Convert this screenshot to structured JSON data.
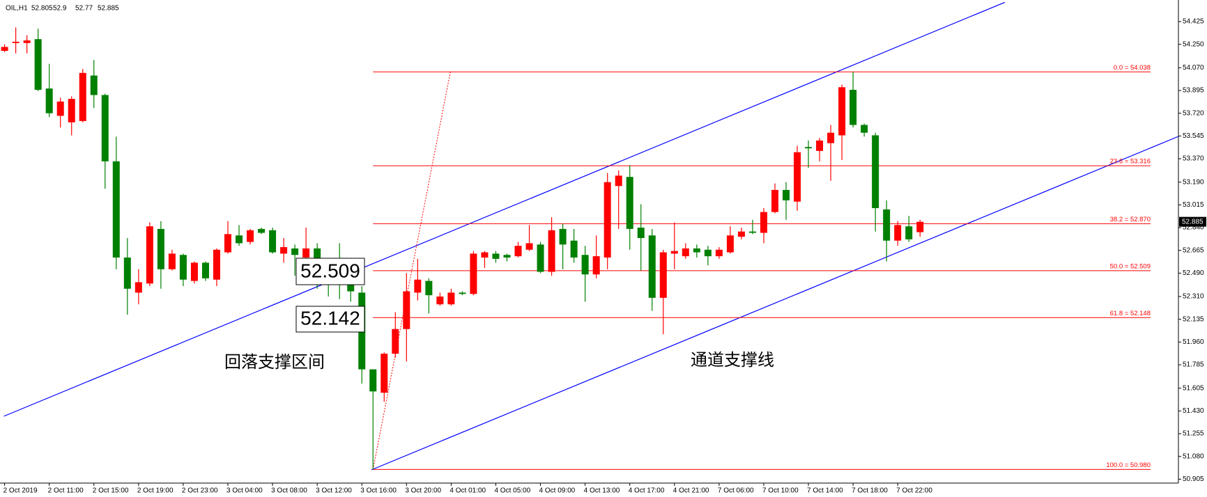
{
  "chart_data": {
    "type": "candlestick",
    "symbol": "OIL,H1",
    "categories": [
      "2 Oct 2019",
      null,
      null,
      null,
      "2 Oct 11:00",
      null,
      null,
      null,
      "2 Oct 15:00",
      null,
      null,
      null,
      "2 Oct 19:00",
      null,
      null,
      null,
      "2 Oct 23:00",
      null,
      null,
      null,
      "3 Oct 04:00",
      null,
      null,
      null,
      "3 Oct 08:00",
      null,
      null,
      null,
      "3 Oct 12:00",
      null,
      null,
      null,
      "3 Oct 16:00",
      null,
      null,
      null,
      "3 Oct 20:00",
      null,
      null,
      null,
      "4 Oct 01:00",
      null,
      null,
      null,
      "4 Oct 05:00",
      null,
      null,
      null,
      "4 Oct 09:00",
      null,
      null,
      null,
      "4 Oct 13:00",
      null,
      null,
      null,
      "4 Oct 17:00",
      null,
      null,
      null,
      "4 Oct 21:00",
      null,
      null,
      null,
      "7 Oct 06:00",
      null,
      null,
      null,
      "7 Oct 10:00",
      null,
      null,
      null,
      "7 Oct 14:00",
      null,
      null,
      null,
      "7 Oct 18:00",
      null,
      null,
      null,
      "7 Oct 22:00",
      null,
      null
    ],
    "open": [
      54.2,
      54.26,
      54.26,
      54.29,
      53.91,
      53.7,
      53.65,
      53.66,
      54.01,
      53.86,
      53.35,
      52.61,
      52.34,
      52.41,
      52.83,
      52.52,
      52.63,
      52.43,
      52.57,
      52.44,
      52.65,
      52.78,
      52.73,
      52.83,
      52.82,
      52.64,
      52.68,
      52.61,
      52.68,
      52.48,
      52.47,
      52.46,
      52.34,
      51.75,
      51.57,
      51.87,
      52.06,
      52.34,
      52.43,
      52.25,
      52.25,
      52.34,
      52.33,
      52.61,
      52.64,
      52.63,
      52.62,
      52.67,
      52.71,
      52.5,
      52.83,
      52.74,
      52.63,
      52.48,
      52.61,
      53.16,
      53.23,
      52.84,
      52.78,
      52.3,
      52.64,
      52.62,
      52.68,
      52.67,
      52.62,
      52.65,
      52.77,
      52.81,
      52.8,
      52.96,
      53.13,
      53.04,
      53.46,
      53.43,
      53.49,
      53.55,
      53.9,
      53.63,
      53.55,
      52.98,
      52.74,
      52.85,
      52.805
    ],
    "high": [
      54.25,
      54.38,
      54.32,
      54.37,
      54.1,
      53.84,
      53.85,
      54.06,
      54.13,
      53.87,
      53.54,
      52.76,
      52.52,
      52.88,
      52.89,
      52.67,
      52.64,
      52.58,
      52.58,
      52.68,
      52.89,
      52.86,
      52.83,
      52.84,
      52.84,
      52.76,
      52.71,
      52.84,
      52.72,
      52.55,
      52.72,
      52.52,
      52.39,
      51.75,
      51.88,
      52.19,
      52.49,
      52.6,
      52.45,
      52.34,
      52.37,
      52.35,
      52.66,
      52.66,
      52.66,
      52.64,
      52.73,
      52.86,
      52.73,
      52.92,
      52.87,
      52.83,
      52.7,
      52.78,
      53.26,
      53.28,
      53.32,
      53.02,
      52.83,
      52.67,
      52.88,
      52.72,
      52.71,
      52.7,
      52.69,
      52.85,
      52.84,
      52.9,
      52.99,
      53.18,
      53.19,
      53.47,
      53.51,
      53.53,
      53.63,
      53.94,
      54.04,
      53.64,
      53.57,
      53.05,
      52.89,
      52.93,
      52.9
    ],
    "low": [
      54.19,
      54.18,
      54.18,
      53.89,
      53.69,
      53.61,
      53.55,
      53.65,
      53.76,
      53.14,
      52.52,
      52.17,
      52.25,
      52.39,
      52.37,
      52.51,
      52.39,
      52.41,
      52.43,
      52.39,
      52.64,
      52.7,
      52.71,
      52.79,
      52.64,
      52.57,
      52.47,
      52.47,
      52.37,
      52.31,
      52.29,
      52.27,
      51.64,
      50.98,
      51.5,
      51.84,
      51.81,
      52.28,
      52.18,
      52.24,
      52.24,
      52.32,
      52.32,
      52.53,
      52.57,
      52.58,
      52.61,
      52.66,
      52.49,
      52.47,
      52.52,
      52.57,
      52.27,
      52.45,
      52.52,
      52.83,
      52.67,
      52.51,
      52.2,
      52.02,
      52.52,
      52.6,
      52.61,
      52.55,
      52.6,
      52.64,
      52.75,
      52.79,
      52.72,
      52.95,
      52.9,
      52.97,
      53.3,
      53.35,
      53.2,
      53.36,
      53.61,
      53.54,
      52.81,
      52.58,
      52.7,
      52.73,
      52.77
    ],
    "close": [
      54.23,
      54.27,
      54.28,
      53.9,
      53.72,
      53.81,
      53.83,
      54.03,
      53.86,
      53.35,
      52.61,
      52.37,
      52.42,
      52.85,
      52.52,
      52.64,
      52.44,
      52.57,
      52.45,
      52.67,
      52.79,
      52.72,
      52.82,
      52.8,
      52.65,
      52.69,
      52.63,
      52.68,
      52.46,
      52.46,
      52.45,
      52.35,
      51.75,
      51.58,
      51.87,
      52.06,
      52.35,
      52.44,
      52.32,
      52.31,
      52.34,
      52.33,
      52.64,
      52.65,
      52.6,
      52.61,
      52.7,
      52.72,
      52.5,
      52.82,
      52.71,
      52.61,
      52.48,
      52.62,
      53.19,
      53.24,
      52.83,
      52.76,
      52.3,
      52.65,
      52.66,
      52.68,
      52.65,
      52.62,
      52.67,
      52.78,
      52.81,
      52.8,
      52.96,
      53.13,
      53.05,
      53.42,
      53.45,
      53.51,
      53.57,
      53.92,
      53.63,
      53.57,
      52.99,
      52.74,
      52.86,
      52.75,
      52.885
    ],
    "up_color": "#ff0000",
    "down_color": "#008000",
    "ylim": [
      50.875,
      54.591
    ],
    "yticks": [
      54.425,
      {
        "value": 54.25,
        "label": "54.250"
      },
      {
        "value": 54.07,
        "label": "54.070"
      },
      53.895,
      {
        "value": 53.72,
        "label": "53.720"
      },
      53.545,
      {
        "value": 53.37,
        "label": "53.370"
      },
      {
        "value": 53.19,
        "label": "53.190"
      },
      53.015,
      {
        "value": 52.84,
        "label": "52.840"
      },
      52.665,
      {
        "value": 52.49,
        "label": "52.490"
      },
      {
        "value": 52.31,
        "label": "52.310"
      },
      52.135,
      {
        "value": 51.96,
        "label": "51.960"
      },
      51.785,
      51.605,
      {
        "value": 51.43,
        "label": "51.430"
      },
      51.255,
      {
        "value": 51.08,
        "label": "51.080"
      },
      50.905
    ],
    "last_price": 52.885,
    "fib_levels": [
      {
        "value": 54.038,
        "label": "0.0 = 54.038"
      },
      {
        "value": 53.316,
        "label": "23.6 = 53.316"
      },
      {
        "value": 52.87,
        "label": "38.2 = 52.870"
      },
      {
        "value": 52.509,
        "label": "50.0 = 52.509"
      },
      {
        "value": 52.148,
        "label": "61.8 = 52.148"
      },
      {
        "value": 50.98,
        "label": "100.0 = 50.980"
      }
    ],
    "annotations": [
      "52.509",
      "52.142",
      "回落支撑区间",
      "通道支撑线"
    ],
    "grid": false
  }
}
